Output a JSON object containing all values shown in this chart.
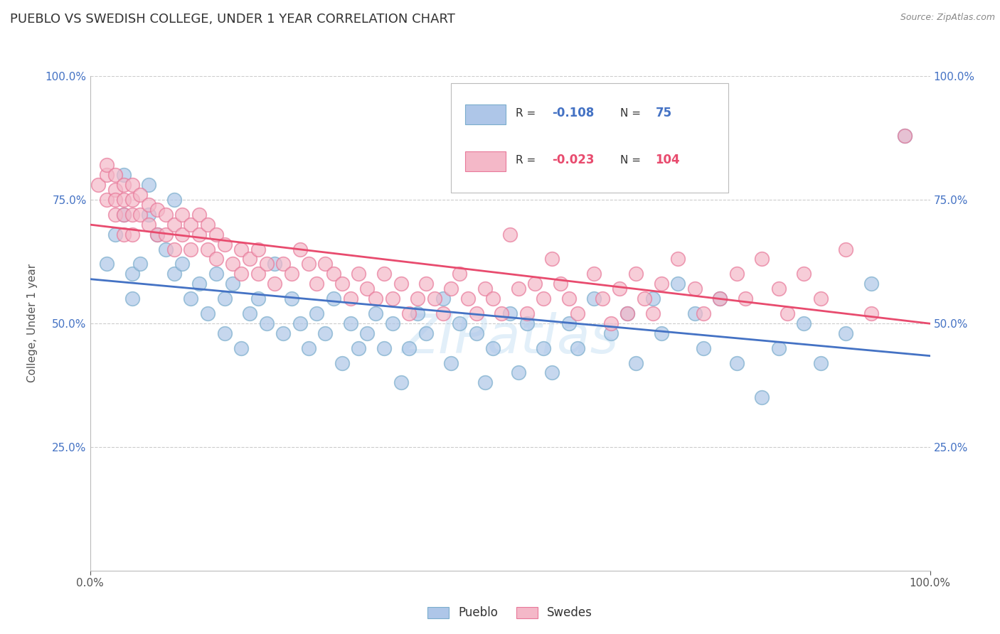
{
  "title": "PUEBLO VS SWEDISH COLLEGE, UNDER 1 YEAR CORRELATION CHART",
  "source_text": "Source: ZipAtlas.com",
  "ylabel": "College, Under 1 year",
  "xlim": [
    0.0,
    1.0
  ],
  "ylim": [
    0.0,
    1.0
  ],
  "ytick_positions": [
    0.25,
    0.5,
    0.75,
    1.0
  ],
  "ytick_labels": [
    "25.0%",
    "50.0%",
    "75.0%",
    "100.0%"
  ],
  "grid_color": "#cccccc",
  "background_color": "#ffffff",
  "pueblo_color": "#aec6e8",
  "swedes_color": "#f4b8c8",
  "pueblo_edge_color": "#7aadcc",
  "swedes_edge_color": "#e87899",
  "pueblo_R": -0.108,
  "pueblo_N": 75,
  "swedes_R": -0.023,
  "swedes_N": 104,
  "trend_color_pueblo": "#4472c4",
  "trend_color_swedes": "#e84b6e",
  "legend_label_pueblo": "Pueblo",
  "legend_label_swedes": "Swedes",
  "pueblo_scatter": [
    [
      0.02,
      0.62
    ],
    [
      0.03,
      0.68
    ],
    [
      0.04,
      0.72
    ],
    [
      0.04,
      0.8
    ],
    [
      0.05,
      0.6
    ],
    [
      0.05,
      0.55
    ],
    [
      0.06,
      0.62
    ],
    [
      0.07,
      0.78
    ],
    [
      0.07,
      0.72
    ],
    [
      0.08,
      0.68
    ],
    [
      0.09,
      0.65
    ],
    [
      0.1,
      0.6
    ],
    [
      0.1,
      0.75
    ],
    [
      0.11,
      0.62
    ],
    [
      0.12,
      0.55
    ],
    [
      0.13,
      0.58
    ],
    [
      0.14,
      0.52
    ],
    [
      0.15,
      0.6
    ],
    [
      0.16,
      0.48
    ],
    [
      0.16,
      0.55
    ],
    [
      0.17,
      0.58
    ],
    [
      0.18,
      0.45
    ],
    [
      0.19,
      0.52
    ],
    [
      0.2,
      0.55
    ],
    [
      0.21,
      0.5
    ],
    [
      0.22,
      0.62
    ],
    [
      0.23,
      0.48
    ],
    [
      0.24,
      0.55
    ],
    [
      0.25,
      0.5
    ],
    [
      0.26,
      0.45
    ],
    [
      0.27,
      0.52
    ],
    [
      0.28,
      0.48
    ],
    [
      0.29,
      0.55
    ],
    [
      0.3,
      0.42
    ],
    [
      0.31,
      0.5
    ],
    [
      0.32,
      0.45
    ],
    [
      0.33,
      0.48
    ],
    [
      0.34,
      0.52
    ],
    [
      0.35,
      0.45
    ],
    [
      0.36,
      0.5
    ],
    [
      0.37,
      0.38
    ],
    [
      0.38,
      0.45
    ],
    [
      0.39,
      0.52
    ],
    [
      0.4,
      0.48
    ],
    [
      0.42,
      0.55
    ],
    [
      0.43,
      0.42
    ],
    [
      0.44,
      0.5
    ],
    [
      0.46,
      0.48
    ],
    [
      0.47,
      0.38
    ],
    [
      0.48,
      0.45
    ],
    [
      0.5,
      0.52
    ],
    [
      0.51,
      0.4
    ],
    [
      0.52,
      0.5
    ],
    [
      0.54,
      0.45
    ],
    [
      0.55,
      0.4
    ],
    [
      0.57,
      0.5
    ],
    [
      0.58,
      0.45
    ],
    [
      0.6,
      0.55
    ],
    [
      0.62,
      0.48
    ],
    [
      0.64,
      0.52
    ],
    [
      0.65,
      0.42
    ],
    [
      0.67,
      0.55
    ],
    [
      0.68,
      0.48
    ],
    [
      0.7,
      0.58
    ],
    [
      0.72,
      0.52
    ],
    [
      0.73,
      0.45
    ],
    [
      0.75,
      0.55
    ],
    [
      0.77,
      0.42
    ],
    [
      0.8,
      0.35
    ],
    [
      0.82,
      0.45
    ],
    [
      0.85,
      0.5
    ],
    [
      0.87,
      0.42
    ],
    [
      0.9,
      0.48
    ],
    [
      0.93,
      0.58
    ],
    [
      0.97,
      0.88
    ]
  ],
  "swedes_scatter": [
    [
      0.01,
      0.78
    ],
    [
      0.02,
      0.8
    ],
    [
      0.02,
      0.75
    ],
    [
      0.02,
      0.82
    ],
    [
      0.03,
      0.77
    ],
    [
      0.03,
      0.8
    ],
    [
      0.03,
      0.75
    ],
    [
      0.03,
      0.72
    ],
    [
      0.04,
      0.75
    ],
    [
      0.04,
      0.78
    ],
    [
      0.04,
      0.72
    ],
    [
      0.04,
      0.68
    ],
    [
      0.05,
      0.78
    ],
    [
      0.05,
      0.75
    ],
    [
      0.05,
      0.72
    ],
    [
      0.05,
      0.68
    ],
    [
      0.06,
      0.76
    ],
    [
      0.06,
      0.72
    ],
    [
      0.07,
      0.74
    ],
    [
      0.07,
      0.7
    ],
    [
      0.08,
      0.73
    ],
    [
      0.08,
      0.68
    ],
    [
      0.09,
      0.72
    ],
    [
      0.09,
      0.68
    ],
    [
      0.1,
      0.7
    ],
    [
      0.1,
      0.65
    ],
    [
      0.11,
      0.72
    ],
    [
      0.11,
      0.68
    ],
    [
      0.12,
      0.7
    ],
    [
      0.12,
      0.65
    ],
    [
      0.13,
      0.68
    ],
    [
      0.13,
      0.72
    ],
    [
      0.14,
      0.65
    ],
    [
      0.14,
      0.7
    ],
    [
      0.15,
      0.68
    ],
    [
      0.15,
      0.63
    ],
    [
      0.16,
      0.66
    ],
    [
      0.17,
      0.62
    ],
    [
      0.18,
      0.65
    ],
    [
      0.18,
      0.6
    ],
    [
      0.19,
      0.63
    ],
    [
      0.2,
      0.6
    ],
    [
      0.2,
      0.65
    ],
    [
      0.21,
      0.62
    ],
    [
      0.22,
      0.58
    ],
    [
      0.23,
      0.62
    ],
    [
      0.24,
      0.6
    ],
    [
      0.25,
      0.65
    ],
    [
      0.26,
      0.62
    ],
    [
      0.27,
      0.58
    ],
    [
      0.28,
      0.62
    ],
    [
      0.29,
      0.6
    ],
    [
      0.3,
      0.58
    ],
    [
      0.31,
      0.55
    ],
    [
      0.32,
      0.6
    ],
    [
      0.33,
      0.57
    ],
    [
      0.34,
      0.55
    ],
    [
      0.35,
      0.6
    ],
    [
      0.36,
      0.55
    ],
    [
      0.37,
      0.58
    ],
    [
      0.38,
      0.52
    ],
    [
      0.39,
      0.55
    ],
    [
      0.4,
      0.58
    ],
    [
      0.41,
      0.55
    ],
    [
      0.42,
      0.52
    ],
    [
      0.43,
      0.57
    ],
    [
      0.44,
      0.6
    ],
    [
      0.45,
      0.55
    ],
    [
      0.46,
      0.52
    ],
    [
      0.47,
      0.57
    ],
    [
      0.48,
      0.55
    ],
    [
      0.49,
      0.52
    ],
    [
      0.5,
      0.68
    ],
    [
      0.51,
      0.57
    ],
    [
      0.52,
      0.52
    ],
    [
      0.53,
      0.58
    ],
    [
      0.54,
      0.55
    ],
    [
      0.55,
      0.63
    ],
    [
      0.56,
      0.58
    ],
    [
      0.57,
      0.55
    ],
    [
      0.58,
      0.52
    ],
    [
      0.6,
      0.6
    ],
    [
      0.61,
      0.55
    ],
    [
      0.62,
      0.5
    ],
    [
      0.63,
      0.57
    ],
    [
      0.64,
      0.52
    ],
    [
      0.65,
      0.6
    ],
    [
      0.66,
      0.55
    ],
    [
      0.67,
      0.52
    ],
    [
      0.68,
      0.58
    ],
    [
      0.7,
      0.63
    ],
    [
      0.72,
      0.57
    ],
    [
      0.73,
      0.52
    ],
    [
      0.75,
      0.55
    ],
    [
      0.77,
      0.6
    ],
    [
      0.78,
      0.55
    ],
    [
      0.8,
      0.63
    ],
    [
      0.82,
      0.57
    ],
    [
      0.83,
      0.52
    ],
    [
      0.85,
      0.6
    ],
    [
      0.87,
      0.55
    ],
    [
      0.9,
      0.65
    ],
    [
      0.93,
      0.52
    ],
    [
      0.97,
      0.88
    ]
  ]
}
